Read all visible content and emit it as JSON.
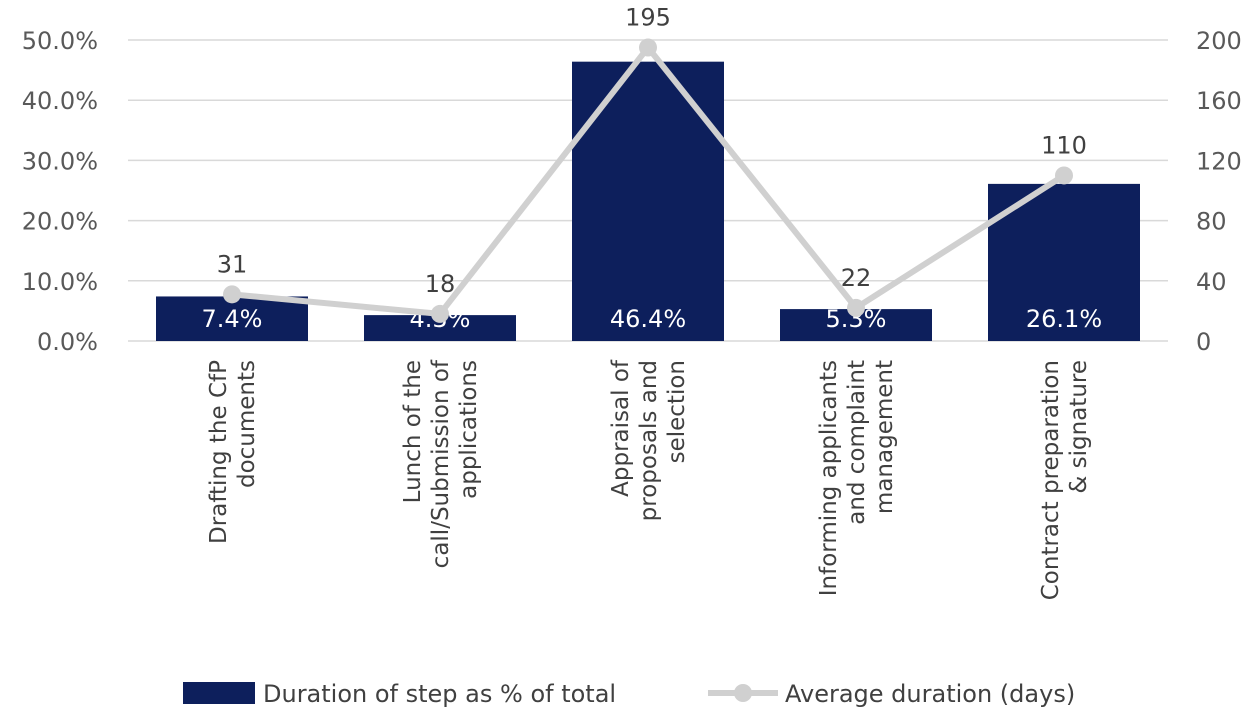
{
  "chart_data": {
    "type": "bar",
    "categories": [
      [
        "Drafting the CfP",
        "documents"
      ],
      [
        "Lunch of the",
        "call/Submission of",
        "applications"
      ],
      [
        "Appraisal of",
        "proposals and",
        "selection"
      ],
      [
        "Informing applicants",
        "and complaint",
        "management"
      ],
      [
        "Contract preparation",
        "& signature"
      ]
    ],
    "series": [
      {
        "name": "Duration of step as % of total",
        "kind": "bar",
        "axis": "left",
        "color": "#0d1f5c",
        "values": [
          7.4,
          4.3,
          46.4,
          5.3,
          26.1
        ],
        "labels": [
          "7.4%",
          "4.3%",
          "46.4%",
          "5.3%",
          "26.1%"
        ]
      },
      {
        "name": "Average duration (days)",
        "kind": "line",
        "axis": "right",
        "color": "#d0d0d0",
        "values": [
          31,
          18,
          195,
          22,
          110
        ],
        "labels": [
          "31",
          "18",
          "195",
          "22",
          "110"
        ]
      }
    ],
    "y_left": {
      "range": [
        0,
        50
      ],
      "ticks": [
        0,
        10,
        20,
        30,
        40,
        50
      ],
      "tick_labels": [
        "0.0%",
        "10.0%",
        "20.0%",
        "30.0%",
        "40.0%",
        "50.0%"
      ]
    },
    "y_right": {
      "range": [
        0,
        200
      ],
      "ticks": [
        0,
        40,
        80,
        120,
        160,
        200
      ],
      "tick_labels": [
        "0",
        "40",
        "80",
        "120",
        "160",
        "200"
      ]
    },
    "grid": true,
    "legend_position": "bottom"
  }
}
